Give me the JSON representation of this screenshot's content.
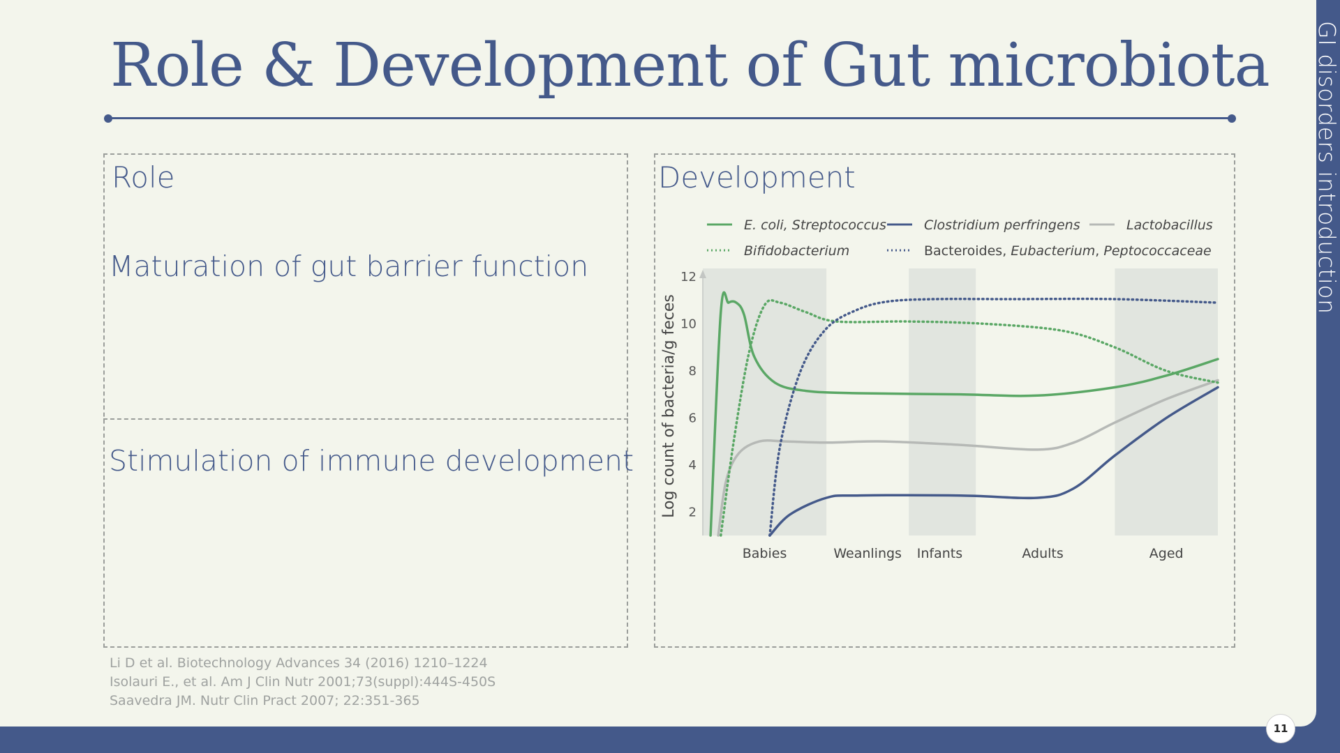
{
  "slide": {
    "title": "Role & Development of Gut microbiota",
    "side_title": "GI disorders introduction",
    "page_number": "11",
    "accent_color": "#44598a"
  },
  "role": {
    "label": "Role",
    "items": [
      "Maturation of gut barrier function",
      "Stimulation of immune development"
    ]
  },
  "development": {
    "label": "Development"
  },
  "references": [
    "Li D et al. Biotechnology Advances 34 (2016) 1210–1224",
    "Isolauri E., et al. Am J Clin Nutr 2001;73(suppl):444S-450S",
    "Saavedra JM. Nutr Clin Pract 2007; 22:351-365"
  ],
  "chart_data": {
    "type": "line",
    "ylabel": "Log count of bacteria/g feces",
    "ylim": [
      1,
      12
    ],
    "yticks": [
      2,
      4,
      6,
      8,
      10,
      12
    ],
    "x_range": [
      0,
      10
    ],
    "x_stages": [
      {
        "label": "Babies",
        "center": 1.2
      },
      {
        "label": "Weanlings",
        "center": 3.2
      },
      {
        "label": "Infants",
        "center": 4.6
      },
      {
        "label": "Adults",
        "center": 6.6
      },
      {
        "label": "Aged",
        "center": 9.0
      }
    ],
    "shaded_bands": [
      [
        0,
        2.4
      ],
      [
        4.0,
        5.3
      ],
      [
        8.0,
        10.0
      ]
    ],
    "legend_position": "top",
    "series": [
      {
        "legend_html": "<i>E. coli, Streptococcus</i>",
        "color": "#5aa765",
        "dash": "solid",
        "x": [
          0.15,
          0.35,
          0.5,
          0.65,
          0.8,
          1.0,
          1.4,
          2.0,
          3.0,
          5.0,
          6.5,
          8.0,
          9.0,
          10.0
        ],
        "y": [
          1.0,
          10.5,
          10.9,
          10.9,
          10.4,
          8.6,
          7.5,
          7.15,
          7.05,
          7.0,
          6.95,
          7.3,
          7.8,
          8.5
        ]
      },
      {
        "legend_html": "<i>Clostridium perfringens</i>",
        "color": "#44598a",
        "dash": "solid",
        "x": [
          1.3,
          1.7,
          2.4,
          3.0,
          5.0,
          6.5,
          7.2,
          8.0,
          9.0,
          10.0
        ],
        "y": [
          1.0,
          1.9,
          2.6,
          2.7,
          2.7,
          2.6,
          3.0,
          4.4,
          6.0,
          7.3
        ]
      },
      {
        "legend_html": "<i>Lactobacillus</i>",
        "color": "#b6b9b6",
        "dash": "solid",
        "x": [
          0.3,
          0.45,
          0.7,
          1.1,
          1.6,
          2.4,
          3.5,
          5.0,
          6.5,
          7.2,
          8.0,
          9.0,
          10.0
        ],
        "y": [
          1.0,
          3.3,
          4.5,
          5.0,
          5.0,
          4.95,
          5.0,
          4.85,
          4.65,
          4.95,
          5.8,
          6.8,
          7.6
        ]
      },
      {
        "legend_html": "<i>Bifidobacterium</i>",
        "color": "#5aa765",
        "dash": "dotted",
        "x": [
          0.35,
          0.6,
          0.9,
          1.2,
          1.5,
          2.0,
          2.6,
          4.0,
          5.5,
          7.0,
          8.0,
          9.0,
          10.0
        ],
        "y": [
          1.0,
          5.0,
          8.8,
          10.8,
          10.9,
          10.5,
          10.1,
          10.1,
          10.0,
          9.7,
          9.0,
          8.0,
          7.5
        ]
      },
      {
        "legend_html": "Bacteroides, <i>Eubacterium</i>, <i>Peptococcaceae</i>",
        "color": "#44598a",
        "dash": "dotted",
        "x": [
          1.3,
          1.5,
          1.9,
          2.4,
          3.0,
          3.6,
          4.5,
          6.0,
          8.0,
          10.0
        ],
        "y": [
          1.0,
          4.8,
          8.0,
          9.8,
          10.6,
          10.95,
          11.05,
          11.05,
          11.05,
          10.9
        ]
      }
    ]
  }
}
